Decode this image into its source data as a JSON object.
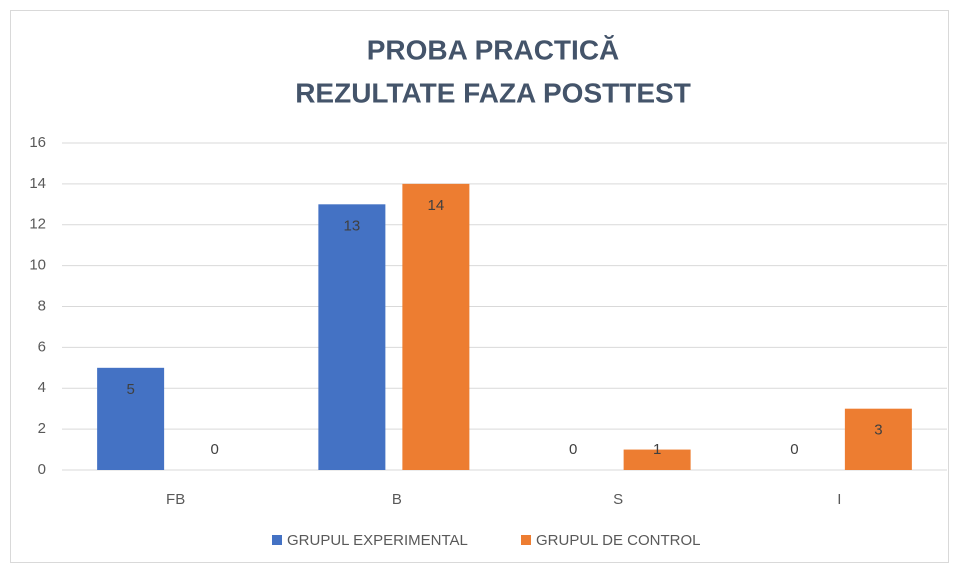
{
  "chart_data": {
    "type": "bar",
    "title": [
      "PROBA PRACTICĂ",
      "REZULTATE FAZA POSTTEST"
    ],
    "categories": [
      "FB",
      "B",
      "S",
      "I"
    ],
    "series": [
      {
        "name": "GRUPUL EXPERIMENTAL",
        "color": "#4472c4",
        "values": [
          5,
          13,
          0,
          0
        ]
      },
      {
        "name": "GRUPUL DE CONTROL",
        "color": "#ed7d31",
        "values": [
          0,
          14,
          1,
          3
        ]
      }
    ],
    "ylim": [
      0,
      16
    ],
    "yticks": [
      0,
      2,
      4,
      6,
      8,
      10,
      12,
      14,
      16
    ],
    "grid": true,
    "legend": "bottom"
  }
}
